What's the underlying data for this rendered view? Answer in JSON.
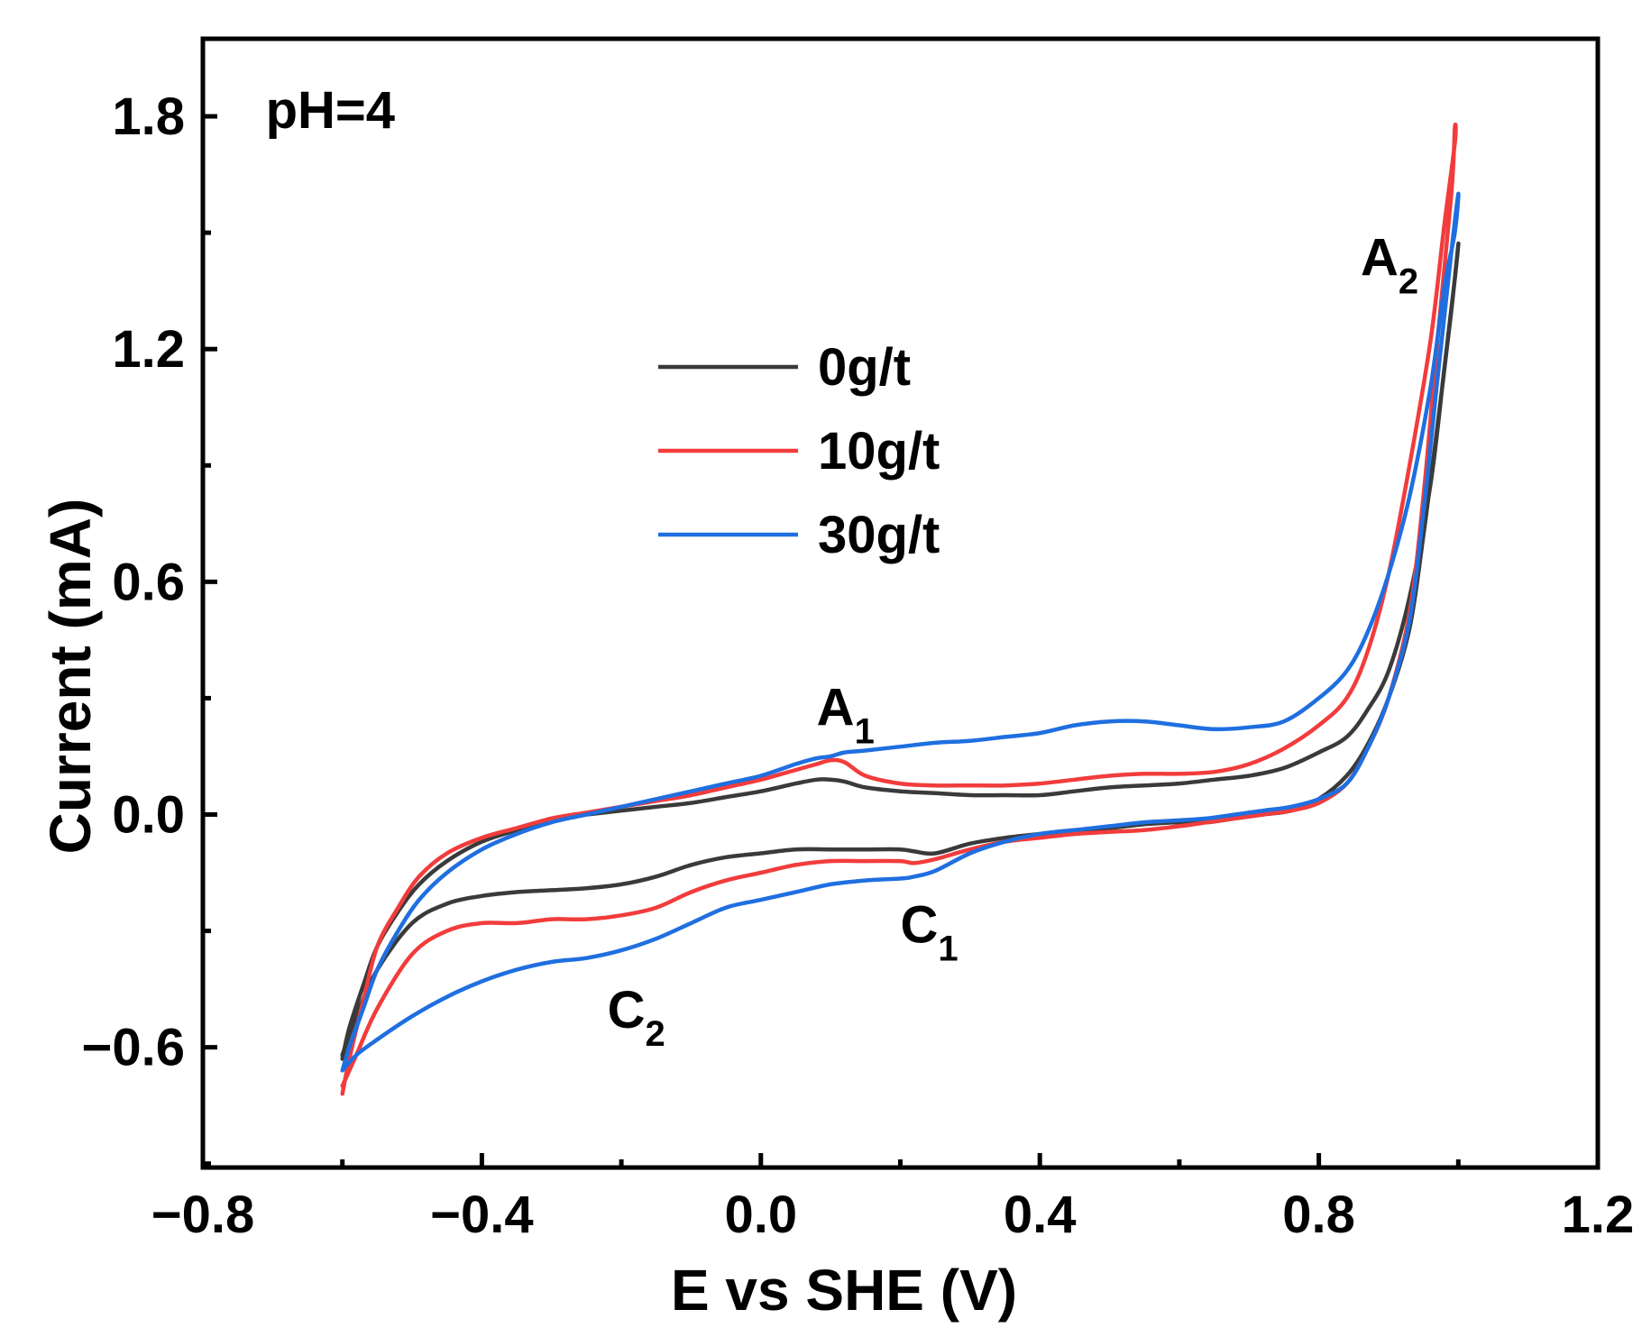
{
  "chart_data": {
    "type": "line",
    "title": "",
    "xlabel": "E vs SHE (V)",
    "ylabel": "Current (mA)",
    "xlim": [
      -0.8,
      1.2
    ],
    "ylim": [
      -0.91,
      2.0
    ],
    "xticks": [
      -0.8,
      -0.4,
      0.0,
      0.4,
      0.8,
      1.2
    ],
    "xtick_labels": [
      "−0.8",
      "−0.4",
      "0.0",
      "0.4",
      "0.8",
      "1.2"
    ],
    "yticks": [
      -0.6,
      0.0,
      0.6,
      1.2,
      1.8
    ],
    "ytick_labels": [
      "−0.6",
      "0.0",
      "0.6",
      "1.2",
      "1.8"
    ],
    "grid": false,
    "legend_position": "top-center",
    "annotations": [
      {
        "main": "pH=4",
        "sub": "",
        "x": -0.71,
        "y": 1.77
      },
      {
        "main": "A",
        "sub": "1",
        "x": 0.08,
        "y": 0.23
      },
      {
        "main": "A",
        "sub": "2",
        "x": 0.86,
        "y": 1.39
      },
      {
        "main": "C",
        "sub": "1",
        "x": 0.2,
        "y": -0.33
      },
      {
        "main": "C",
        "sub": "2",
        "x": -0.22,
        "y": -0.55
      }
    ],
    "series": [
      {
        "name": "0g/t",
        "color": "#3a3a3a",
        "x": [
          -0.6,
          -0.59,
          -0.57,
          -0.55,
          -0.52,
          -0.49,
          -0.45,
          -0.4,
          -0.35,
          -0.3,
          -0.25,
          -0.2,
          -0.15,
          -0.1,
          -0.05,
          0.0,
          0.05,
          0.08,
          0.1,
          0.12,
          0.15,
          0.2,
          0.25,
          0.3,
          0.35,
          0.4,
          0.45,
          0.5,
          0.55,
          0.6,
          0.65,
          0.7,
          0.75,
          0.8,
          0.84,
          0.87,
          0.9,
          0.93,
          0.96,
          0.98,
          0.995,
          1.0,
          0.99,
          0.97,
          0.95,
          0.93,
          0.9,
          0.87,
          0.84,
          0.8,
          0.76,
          0.72,
          0.68,
          0.64,
          0.6,
          0.55,
          0.5,
          0.45,
          0.4,
          0.35,
          0.3,
          0.25,
          0.22,
          0.2,
          0.15,
          0.1,
          0.05,
          0.0,
          -0.05,
          -0.1,
          -0.15,
          -0.2,
          -0.25,
          -0.3,
          -0.35,
          -0.4,
          -0.45,
          -0.5,
          -0.55,
          -0.58,
          -0.6
        ],
        "y": [
          -0.63,
          -0.55,
          -0.44,
          -0.34,
          -0.25,
          -0.18,
          -0.12,
          -0.07,
          -0.04,
          -0.01,
          0.0,
          0.01,
          0.02,
          0.03,
          0.045,
          0.06,
          0.08,
          0.09,
          0.09,
          0.085,
          0.07,
          0.06,
          0.055,
          0.05,
          0.05,
          0.05,
          0.06,
          0.07,
          0.075,
          0.08,
          0.09,
          0.1,
          0.12,
          0.16,
          0.2,
          0.27,
          0.37,
          0.56,
          0.85,
          1.15,
          1.38,
          1.47,
          1.3,
          1.0,
          0.72,
          0.48,
          0.3,
          0.18,
          0.1,
          0.04,
          0.01,
          0.0,
          -0.01,
          -0.02,
          -0.02,
          -0.025,
          -0.035,
          -0.04,
          -0.05,
          -0.06,
          -0.075,
          -0.1,
          -0.095,
          -0.09,
          -0.09,
          -0.09,
          -0.09,
          -0.1,
          -0.11,
          -0.13,
          -0.16,
          -0.18,
          -0.19,
          -0.195,
          -0.2,
          -0.21,
          -0.23,
          -0.28,
          -0.4,
          -0.52,
          -0.62
        ]
      },
      {
        "name": "10g/t",
        "color": "#f23c3c",
        "x": [
          -0.6,
          -0.59,
          -0.57,
          -0.55,
          -0.52,
          -0.49,
          -0.45,
          -0.4,
          -0.35,
          -0.3,
          -0.25,
          -0.2,
          -0.15,
          -0.1,
          -0.05,
          0.0,
          0.05,
          0.08,
          0.1,
          0.12,
          0.15,
          0.2,
          0.25,
          0.3,
          0.35,
          0.4,
          0.45,
          0.5,
          0.55,
          0.6,
          0.65,
          0.7,
          0.75,
          0.8,
          0.84,
          0.87,
          0.9,
          0.93,
          0.96,
          0.98,
          0.995,
          0.995,
          0.99,
          0.97,
          0.95,
          0.93,
          0.9,
          0.87,
          0.84,
          0.8,
          0.76,
          0.72,
          0.68,
          0.64,
          0.6,
          0.55,
          0.5,
          0.45,
          0.4,
          0.35,
          0.3,
          0.25,
          0.22,
          0.2,
          0.15,
          0.1,
          0.05,
          0.0,
          -0.05,
          -0.1,
          -0.15,
          -0.2,
          -0.25,
          -0.3,
          -0.35,
          -0.4,
          -0.45,
          -0.5,
          -0.55,
          -0.58,
          -0.6
        ],
        "y": [
          -0.72,
          -0.63,
          -0.48,
          -0.34,
          -0.24,
          -0.16,
          -0.1,
          -0.06,
          -0.035,
          -0.01,
          0.005,
          0.02,
          0.035,
          0.05,
          0.07,
          0.09,
          0.115,
          0.13,
          0.14,
          0.135,
          0.1,
          0.08,
          0.075,
          0.075,
          0.075,
          0.08,
          0.09,
          0.1,
          0.105,
          0.105,
          0.11,
          0.13,
          0.17,
          0.23,
          0.3,
          0.42,
          0.62,
          0.9,
          1.22,
          1.52,
          1.73,
          1.77,
          1.6,
          1.22,
          0.82,
          0.52,
          0.3,
          0.17,
          0.08,
          0.03,
          0.01,
          0.0,
          -0.01,
          -0.02,
          -0.03,
          -0.04,
          -0.045,
          -0.05,
          -0.06,
          -0.07,
          -0.09,
          -0.115,
          -0.125,
          -0.12,
          -0.12,
          -0.12,
          -0.13,
          -0.15,
          -0.17,
          -0.2,
          -0.24,
          -0.26,
          -0.27,
          -0.27,
          -0.28,
          -0.28,
          -0.3,
          -0.36,
          -0.5,
          -0.62,
          -0.7
        ]
      },
      {
        "name": "30g/t",
        "color": "#1f6fe0",
        "x": [
          -0.6,
          -0.59,
          -0.57,
          -0.55,
          -0.52,
          -0.49,
          -0.45,
          -0.4,
          -0.35,
          -0.3,
          -0.25,
          -0.2,
          -0.15,
          -0.1,
          -0.05,
          0.0,
          0.05,
          0.08,
          0.1,
          0.12,
          0.15,
          0.2,
          0.25,
          0.3,
          0.35,
          0.4,
          0.45,
          0.5,
          0.55,
          0.6,
          0.65,
          0.7,
          0.75,
          0.8,
          0.84,
          0.87,
          0.9,
          0.93,
          0.96,
          0.98,
          0.995,
          1.0,
          0.99,
          0.97,
          0.95,
          0.93,
          0.9,
          0.87,
          0.84,
          0.8,
          0.76,
          0.72,
          0.68,
          0.64,
          0.6,
          0.55,
          0.5,
          0.45,
          0.4,
          0.35,
          0.3,
          0.25,
          0.22,
          0.2,
          0.15,
          0.1,
          0.05,
          0.0,
          -0.05,
          -0.1,
          -0.15,
          -0.2,
          -0.25,
          -0.3,
          -0.35,
          -0.4,
          -0.45,
          -0.5,
          -0.55,
          -0.58,
          -0.6
        ],
        "y": [
          -0.66,
          -0.6,
          -0.5,
          -0.4,
          -0.3,
          -0.22,
          -0.15,
          -0.09,
          -0.05,
          -0.02,
          0.0,
          0.02,
          0.04,
          0.06,
          0.08,
          0.1,
          0.13,
          0.145,
          0.15,
          0.16,
          0.165,
          0.175,
          0.185,
          0.19,
          0.2,
          0.21,
          0.23,
          0.24,
          0.24,
          0.23,
          0.22,
          0.225,
          0.24,
          0.3,
          0.37,
          0.47,
          0.62,
          0.82,
          1.1,
          1.36,
          1.5,
          1.6,
          1.45,
          1.12,
          0.78,
          0.5,
          0.3,
          0.17,
          0.08,
          0.04,
          0.02,
          0.01,
          0.0,
          -0.01,
          -0.015,
          -0.02,
          -0.03,
          -0.04,
          -0.05,
          -0.07,
          -0.1,
          -0.145,
          -0.16,
          -0.165,
          -0.17,
          -0.18,
          -0.2,
          -0.22,
          -0.24,
          -0.28,
          -0.32,
          -0.35,
          -0.37,
          -0.38,
          -0.4,
          -0.43,
          -0.47,
          -0.52,
          -0.58,
          -0.62,
          -0.66
        ]
      }
    ]
  }
}
